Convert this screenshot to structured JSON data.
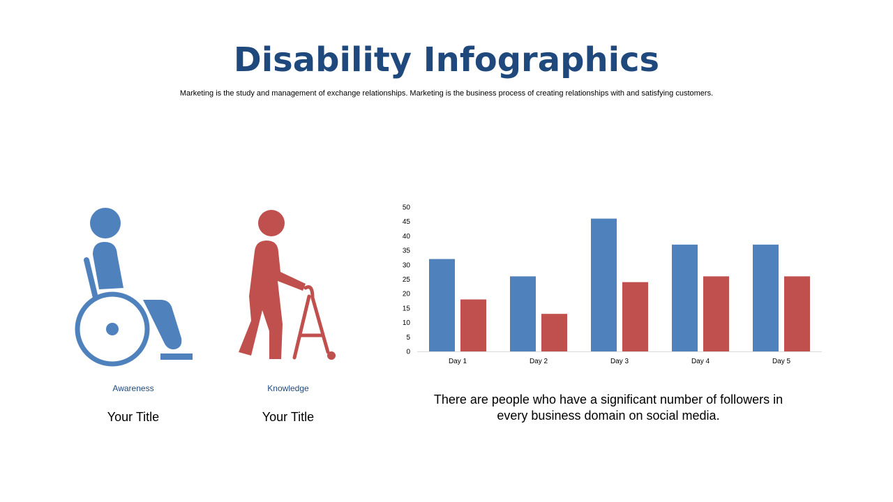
{
  "title": "Disability Infographics",
  "subtitle": "Marketing is the study and management of exchange relationships. Marketing is the business process of creating relationships with and satisfying customers.",
  "items": [
    {
      "icon": "wheelchair-icon",
      "label": "Awareness",
      "title": "Your Title",
      "color": "#4f81bd"
    },
    {
      "icon": "walker-icon",
      "label": "Knowledge",
      "title": "Your Title",
      "color": "#c0504d"
    }
  ],
  "description": "There are people who have a significant number of followers in every business domain on social media.",
  "chart_data": {
    "type": "bar",
    "categories": [
      "Day 1",
      "Day 2",
      "Day 3",
      "Day 4",
      "Day 5"
    ],
    "series": [
      {
        "values": [
          32,
          26,
          46,
          37,
          37
        ],
        "color": "#4f81bd"
      },
      {
        "values": [
          18,
          13,
          24,
          26,
          26
        ],
        "color": "#c0504d"
      }
    ],
    "ylim": [
      0,
      50
    ],
    "yticks": [
      0,
      5,
      10,
      15,
      20,
      25,
      30,
      35,
      40,
      45,
      50
    ],
    "grid": false,
    "legend": "none"
  }
}
